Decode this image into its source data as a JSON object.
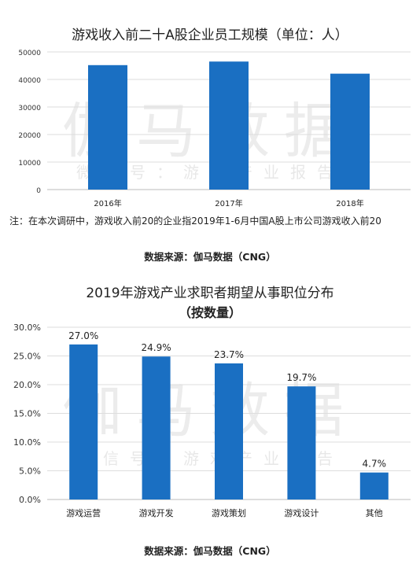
{
  "chart_data": [
    {
      "type": "bar",
      "title": "游戏收入前二十A股企业员工规模（单位：人）",
      "categories": [
        "2016年",
        "2017年",
        "2018年"
      ],
      "values": [
        45200,
        46500,
        42100
      ],
      "yticks": [
        "0",
        "10000",
        "20000",
        "30000",
        "40000",
        "50000"
      ],
      "ylim": [
        0,
        50000
      ],
      "grid": true,
      "bar_color": "#1a6fc2"
    },
    {
      "type": "bar",
      "title": "2019年游戏产业求职者期望从事职位分布",
      "subtitle": "（按数量）",
      "categories": [
        "游戏运营",
        "游戏开发",
        "游戏策划",
        "游戏设计",
        "其他"
      ],
      "values": [
        27.0,
        24.9,
        23.7,
        19.7,
        4.7
      ],
      "data_labels": [
        "27.0%",
        "24.9%",
        "23.7%",
        "19.7%",
        "4.7%"
      ],
      "yticks": [
        "0.0%",
        "5.0%",
        "10.0%",
        "15.0%",
        "20.0%",
        "25.0%",
        "30.0%"
      ],
      "ylim": [
        0,
        30
      ],
      "grid": true,
      "bar_color": "#1a6fc2"
    }
  ],
  "watermark": {
    "brand": "伽马数据",
    "tagline": "微信号：游戏产业报告"
  },
  "note": "注：在本次调研中，游戏收入前20的企业指2019年1-6月中国A股上市公司游戏收入前20",
  "source": "数据来源：伽马数据（CNG）"
}
